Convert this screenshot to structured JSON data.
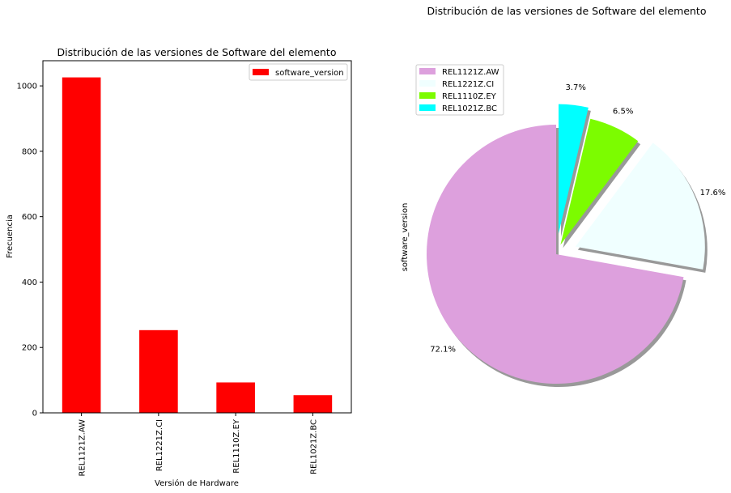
{
  "chart_data": [
    {
      "type": "bar",
      "title": "Distribución de las versiones de Software del elemento",
      "xlabel": "Versión de Hardware",
      "ylabel": "Frecuencia",
      "categories": [
        "REL1121Z.AW",
        "REL1221Z.CI",
        "REL1110Z.EY",
        "REL1021Z.BC"
      ],
      "series": [
        {
          "name": "software_version",
          "values": [
            1026,
            253,
            93,
            54
          ],
          "color": "#ff0000"
        }
      ],
      "ylim": [
        0,
        1077
      ],
      "yticks": [
        0,
        200,
        400,
        600,
        800,
        1000
      ],
      "legend": "top-right",
      "grid": false
    },
    {
      "type": "pie",
      "title": "Distribución de las versiones de Software del elemento",
      "ylabel": "software_version",
      "labels": [
        "REL1121Z.AW",
        "REL1221Z.CI",
        "REL1110Z.EY",
        "REL1021Z.BC"
      ],
      "values": [
        72.1,
        17.6,
        6.5,
        3.7
      ],
      "value_labels": [
        "72.1%",
        "17.6%",
        "6.5%",
        "3.7%"
      ],
      "colors": [
        "#dda0dd",
        "#f0ffff",
        "#7cfc00",
        "#00ffff"
      ],
      "explode": [
        0,
        0.2,
        0.1,
        0.2
      ],
      "startangle": 90,
      "shadow": true,
      "legend": "top-left"
    }
  ]
}
